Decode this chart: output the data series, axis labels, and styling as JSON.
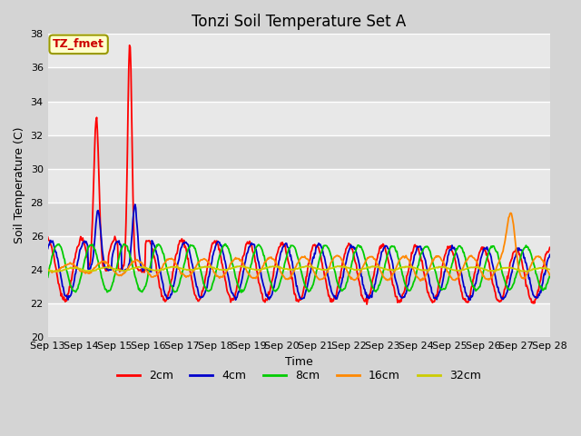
{
  "title": "Tonzi Soil Temperature Set A",
  "xlabel": "Time",
  "ylabel": "Soil Temperature (C)",
  "ylim": [
    20,
    38
  ],
  "xlim": [
    0,
    15
  ],
  "xtick_labels": [
    "Sep 13",
    "Sep 14",
    "Sep 15",
    "Sep 16",
    "Sep 17",
    "Sep 18",
    "Sep 19",
    "Sep 20",
    "Sep 21",
    "Sep 22",
    "Sep 23",
    "Sep 24",
    "Sep 25",
    "Sep 26",
    "Sep 27",
    "Sep 28"
  ],
  "annotation": "TZ_fmet",
  "annotation_color": "#cc0000",
  "annotation_bg": "#ffffcc",
  "annotation_edge": "#999900",
  "bg_color": "#d4d4d4",
  "plot_bg_light": "#e8e8e8",
  "plot_bg_dark": "#d8d8d8",
  "line_colors": [
    "#ff0000",
    "#0000cc",
    "#00cc00",
    "#ff8800",
    "#cccc00"
  ],
  "line_labels": [
    "2cm",
    "4cm",
    "8cm",
    "16cm",
    "32cm"
  ],
  "title_fontsize": 12,
  "axis_fontsize": 9,
  "tick_fontsize": 8,
  "legend_fontsize": 9
}
